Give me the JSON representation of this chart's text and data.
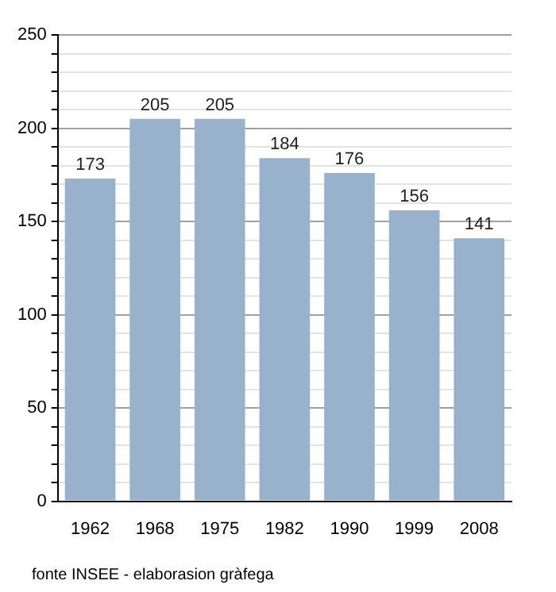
{
  "chart_data": {
    "type": "bar",
    "categories": [
      "1962",
      "1968",
      "1975",
      "1982",
      "1990",
      "1999",
      "2008"
    ],
    "values": [
      173,
      205,
      205,
      184,
      176,
      156,
      141
    ],
    "color": "#98b2cc",
    "data_labels": true,
    "grid": "y",
    "legend": false,
    "ylim": [
      0,
      250
    ],
    "yticks": [
      0,
      {
        "value": 10,
        "label": null
      },
      {
        "value": 20,
        "label": null
      },
      {
        "value": 30,
        "label": null
      },
      {
        "value": 40,
        "label": null
      },
      50,
      {
        "value": 60,
        "label": null
      },
      {
        "value": 70,
        "label": null
      },
      {
        "value": 80,
        "label": null
      },
      {
        "value": 90,
        "label": null
      },
      100,
      {
        "value": 110,
        "label": null
      },
      {
        "value": 120,
        "label": null
      },
      {
        "value": 130,
        "label": null
      },
      {
        "value": 140,
        "label": null
      },
      150,
      {
        "value": 160,
        "label": null
      },
      {
        "value": 170,
        "label": null
      },
      {
        "value": 180,
        "label": null
      },
      {
        "value": 190,
        "label": null
      },
      200,
      {
        "value": 210,
        "label": null
      },
      {
        "value": 220,
        "label": null
      },
      {
        "value": 230,
        "label": null
      },
      {
        "value": 240,
        "label": null
      },
      250
    ],
    "annotations": [
      "fonte INSEE - elaborasion gràfega"
    ]
  }
}
